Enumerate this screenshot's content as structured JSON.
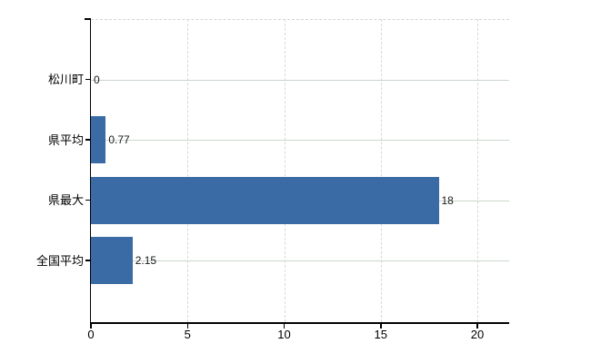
{
  "chart_data": {
    "type": "bar",
    "orientation": "horizontal",
    "title": "",
    "xlabel": "",
    "ylabel": "",
    "categories": [
      "松川町",
      "県平均",
      "県最大",
      "全国平均"
    ],
    "values": [
      0,
      0.77,
      18,
      2.15
    ],
    "value_labels": [
      "0",
      "0.77",
      "18",
      "2.15"
    ],
    "x_ticks": [
      "0",
      "5",
      "10",
      "15",
      "20"
    ],
    "x_tick_values": [
      0,
      5,
      10,
      15,
      20
    ],
    "xlim": [
      0,
      20
    ],
    "legend": "none",
    "grid": {
      "horizontal": "solid",
      "vertical": "dashed",
      "top_border": "dashed"
    },
    "colors": {
      "bar": "#3a6ba4",
      "hgrid": "#ccd6cc",
      "vgrid": "#d8d8d8",
      "axis": "#000000",
      "text": "#000000",
      "value_text": "#1a1a1a",
      "background": "#ffffff"
    }
  }
}
